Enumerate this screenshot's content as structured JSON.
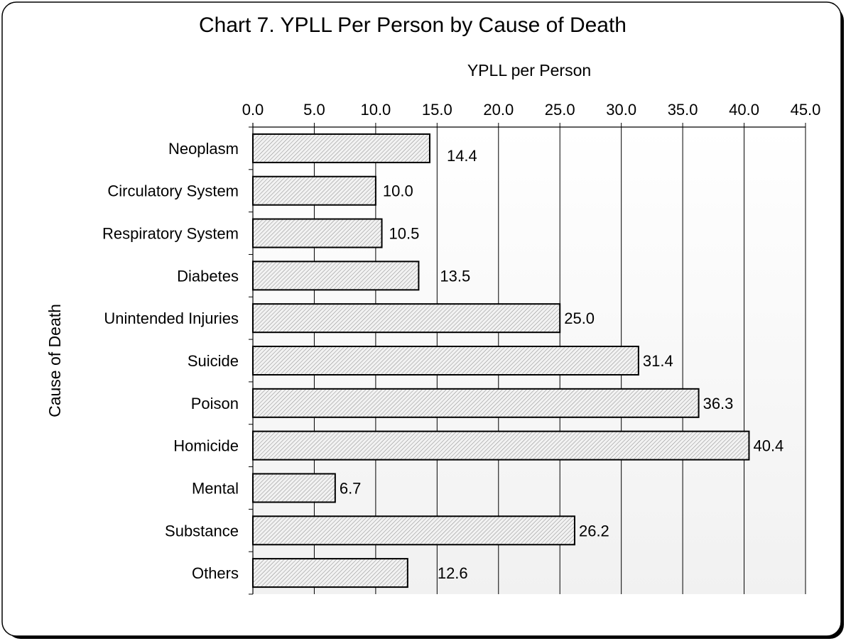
{
  "chart_data": {
    "type": "bar",
    "orientation": "horizontal",
    "title": "Chart 7. YPLL Per Person by Cause of Death",
    "xlabel": "YPLL per Person",
    "ylabel": "Cause of Death",
    "x_axis_position": "top",
    "xlim": [
      0,
      45
    ],
    "x_ticks": [
      "0.0",
      "5.0",
      "10.0",
      "15.0",
      "20.0",
      "25.0",
      "30.0",
      "35.0",
      "40.0",
      "45.0"
    ],
    "grid": "vertical",
    "legend": "none",
    "bar_fill": "hatched",
    "categories": [
      "Neoplasm",
      "Circulatory System",
      "Respiratory System",
      "Diabetes",
      "Unintended Injuries",
      "Suicide",
      "Poison",
      "Homicide",
      "Mental",
      "Substance",
      "Others"
    ],
    "values": [
      14.4,
      10.0,
      10.5,
      13.5,
      25.0,
      31.4,
      36.3,
      40.4,
      6.7,
      26.2,
      12.6
    ],
    "value_labels": [
      "14.4",
      "10.0",
      "10.5",
      "13.5",
      "25.0",
      "31.4",
      "36.3",
      "40.4",
      "6.7",
      "26.2",
      "12.6"
    ]
  }
}
